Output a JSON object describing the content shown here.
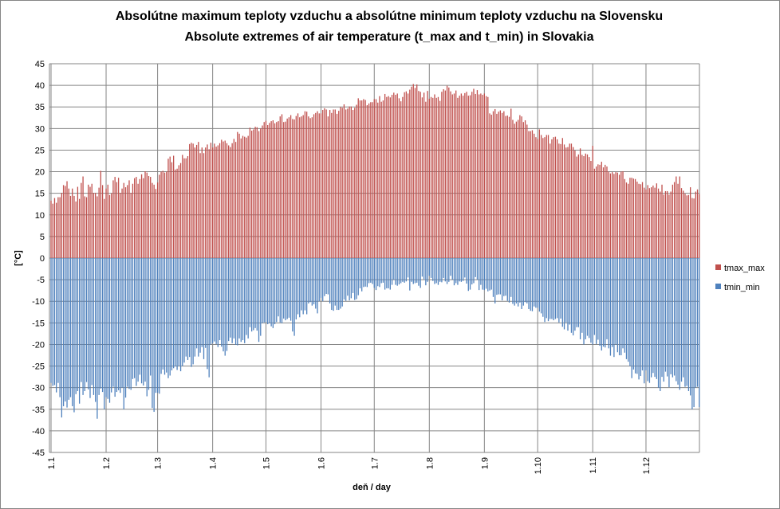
{
  "chart_data": {
    "type": "bar",
    "title": [
      "Absolútne maximum teploty vzduchu a absolútne minimum teploty vzduchu na Slovensku",
      "Absolute extremes of air temperature (t_max and t_min) in Slovakia"
    ],
    "xlabel": "deň / day",
    "ylabel": "[°C]",
    "ylim": [
      -45,
      45
    ],
    "ystep": 5,
    "grid": true,
    "legend_position": "right",
    "x_ticks": [
      {
        "label": "1.1",
        "day": 0
      },
      {
        "label": "1.2",
        "day": 31
      },
      {
        "label": "1.3",
        "day": 60
      },
      {
        "label": "1.4",
        "day": 91
      },
      {
        "label": "1.5",
        "day": 121
      },
      {
        "label": "1.6",
        "day": 152
      },
      {
        "label": "1.7",
        "day": 182
      },
      {
        "label": "1.8",
        "day": 213
      },
      {
        "label": "1.9",
        "day": 244
      },
      {
        "label": "1.10",
        "day": 274
      },
      {
        "label": "1.11",
        "day": 305
      },
      {
        "label": "1.12",
        "day": 335
      }
    ],
    "days": 366,
    "series": [
      {
        "name": "tmax_max",
        "color": "#C0504D",
        "values": [
          13.3,
          12.6,
          13.9,
          12.8,
          14.1,
          14.1,
          15.1,
          16.9,
          16.7,
          17.8,
          16.1,
          14.4,
          16.1,
          14.4,
          13.1,
          16.5,
          13.7,
          17.4,
          18.9,
          14.3,
          14.1,
          17.0,
          16.5,
          17.2,
          15.1,
          15.1,
          14.3,
          16.3,
          20.2,
          16.9,
          13.7,
          16.1,
          17.0,
          14.6,
          15.0,
          18.0,
          18.8,
          17.6,
          18.6,
          15.1,
          16.1,
          17.4,
          16.4,
          16.9,
          18.0,
          15.1,
          17.2,
          18.5,
          18.8,
          17.2,
          18.3,
          19.4,
          18.5,
          20.1,
          19.8,
          19.0,
          18.8,
          17.4,
          17.0,
          16.0,
          17.5,
          19.3,
          20.0,
          20.2,
          19.8,
          20.0,
          23.0,
          23.5,
          22.2,
          23.7,
          20.5,
          20.7,
          21.5,
          22.0,
          23.9,
          23.1,
          23.1,
          23.6,
          26.4,
          26.7,
          26.5,
          25.6,
          26.2,
          26.9,
          24.3,
          25.6,
          24.3,
          25.6,
          26.3,
          25.2,
          26.7,
          25.6,
          26.5,
          25.8,
          26.1,
          26.6,
          27.4,
          27.0,
          27.2,
          26.6,
          26.1,
          25.7,
          26.6,
          27.6,
          26.9,
          29.2,
          28.8,
          27.7,
          28.3,
          28.1,
          27.9,
          28.3,
          30.2,
          29.5,
          29.8,
          30.4,
          30.3,
          29.4,
          30.0,
          30.7,
          31.5,
          31.8,
          30.8,
          31.3,
          31.7,
          31.9,
          31.2,
          31.5,
          31.7,
          32.8,
          33.3,
          31.5,
          31.6,
          32.3,
          32.6,
          33.1,
          32.2,
          32.1,
          32.9,
          33.5,
          32.6,
          32.8,
          33.1,
          34.0,
          33.9,
          32.8,
          32.4,
          32.6,
          33.3,
          33.6,
          34.0,
          33.5,
          33.5,
          34.3,
          34.7,
          34.4,
          32.8,
          34.3,
          33.6,
          34.4,
          34.4,
          33.4,
          34.1,
          35.0,
          34.8,
          35.6,
          34.4,
          34.6,
          35.1,
          35.1,
          34.3,
          34.8,
          35.5,
          37.0,
          36.5,
          36.5,
          36.8,
          36.6,
          35.4,
          35.8,
          36.1,
          36.1,
          36.8,
          36.8,
          36.0,
          37.5,
          36.2,
          36.5,
          38.0,
          37.3,
          37.5,
          37.2,
          37.8,
          38.3,
          37.8,
          38.1,
          37.0,
          36.3,
          37.3,
          38.4,
          38.6,
          38.1,
          39.0,
          39.7,
          40.3,
          39.4,
          40.2,
          38.7,
          38.5,
          37.2,
          38.3,
          36.2,
          38.7,
          36.9,
          37.3,
          37.1,
          37.9,
          37.1,
          37.3,
          36.4,
          38.5,
          39.1,
          38.8,
          39.9,
          39.5,
          38.6,
          37.9,
          38.1,
          38.8,
          37.1,
          37.6,
          38.1,
          37.6,
          38.2,
          38.5,
          37.6,
          37.7,
          38.5,
          39.2,
          38.0,
          38.9,
          37.9,
          38.1,
          37.8,
          38.1,
          37.5,
          37.3,
          33.5,
          33.2,
          34.0,
          34.5,
          33.4,
          33.9,
          34.2,
          33.6,
          34.0,
          32.9,
          33.0,
          32.7,
          34.6,
          32.0,
          31.1,
          31.6,
          32.0,
          33.1,
          32.8,
          31.5,
          31.9,
          30.9,
          29.4,
          29.4,
          29.6,
          28.8,
          28.0,
          27.6,
          29.8,
          28.5,
          27.8,
          28.0,
          28.5,
          28.5,
          26.5,
          27.5,
          28.0,
          28.1,
          27.5,
          26.5,
          26.4,
          27.8,
          26.3,
          25.6,
          25.7,
          26.5,
          26.5,
          25.7,
          24.9,
          23.5,
          24.0,
          25.4,
          23.9,
          23.6,
          24.2,
          24.0,
          23.4,
          22.5,
          26.0,
          20.7,
          21.2,
          21.7,
          21.6,
          22.3,
          21.0,
          21.6,
          21.2,
          20.0,
          19.6,
          19.9,
          19.5,
          19.9,
          19.8,
          19.3,
          20.0,
          20.1,
          18.3,
          17.5,
          17.2,
          18.6,
          18.6,
          18.4,
          18.3,
          17.7,
          17.2,
          17.1,
          17.6,
          16.3,
          15.9,
          16.9,
          16.2,
          16.4,
          16.8,
          16.3,
          17.3,
          16.1,
          15.4,
          17.0,
          14.7,
          15.5,
          15.5,
          14.7,
          15.4,
          17.0,
          17.6,
          18.9,
          17.2,
          18.9,
          16.2,
          15.6,
          14.9,
          14.5,
          14.6,
          16.4,
          13.9,
          13.8,
          15.4,
          15.9,
          14.8
        ]
      },
      {
        "name": "tmin_min",
        "color": "#4F81BD",
        "values": [
          -28.9,
          -29.6,
          -29.4,
          -31.1,
          -28.9,
          -32.2,
          -36.9,
          -34.3,
          -33.2,
          -34.6,
          -32.8,
          -32.2,
          -34.3,
          -35.7,
          -31.5,
          -30.8,
          -33.7,
          -28.7,
          -31.7,
          -30.8,
          -28.7,
          -30.4,
          -32.4,
          -29.4,
          -31.7,
          -33.3,
          -37.2,
          -31.7,
          -30.2,
          -31.0,
          -35.0,
          -32.2,
          -32.6,
          -33.5,
          -31.1,
          -29.8,
          -32.1,
          -31.0,
          -30.6,
          -31.2,
          -30.0,
          -35.0,
          -32.3,
          -29.8,
          -30.3,
          -30.5,
          -28.0,
          -27.8,
          -29.6,
          -28.6,
          -27.0,
          -29.0,
          -29.5,
          -28.6,
          -32.0,
          -30.5,
          -27.2,
          -34.7,
          -35.6,
          -31.2,
          -31.2,
          -31.4,
          -26.8,
          -25.8,
          -27.0,
          -26.5,
          -27.8,
          -27.2,
          -26.0,
          -25.5,
          -25.1,
          -25.9,
          -25.0,
          -26.2,
          -25.0,
          -24.2,
          -22.8,
          -23.6,
          -22.9,
          -25.2,
          -24.6,
          -22.8,
          -20.9,
          -22.8,
          -21.9,
          -20.6,
          -23.4,
          -20.8,
          -25.7,
          -27.6,
          -20.0,
          -19.7,
          -19.3,
          -19.9,
          -20.6,
          -19.0,
          -20.5,
          -21.6,
          -22.6,
          -21.5,
          -19.2,
          -18.4,
          -19.7,
          -18.6,
          -20.1,
          -20.2,
          -18.6,
          -19.4,
          -19.0,
          -19.7,
          -17.8,
          -18.6,
          -16.0,
          -17.0,
          -16.7,
          -16.2,
          -16.8,
          -19.4,
          -18.0,
          -15.1,
          -14.9,
          -14.9,
          -15.3,
          -15.1,
          -15.8,
          -16.2,
          -15.3,
          -14.8,
          -13.5,
          -14.9,
          -15.1,
          -14.0,
          -14.4,
          -14.1,
          -13.8,
          -14.5,
          -17.0,
          -18.0,
          -14.2,
          -13.0,
          -13.7,
          -12.1,
          -13.0,
          -12.1,
          -13.0,
          -10.5,
          -10.2,
          -11.0,
          -10.7,
          -11.7,
          -12.8,
          -10.0,
          -9.2,
          -10.0,
          -8.8,
          -8.3,
          -8.4,
          -10.5,
          -12.0,
          -12.2,
          -11.0,
          -12.0,
          -12.0,
          -11.7,
          -11.2,
          -9.6,
          -9.9,
          -8.7,
          -9.8,
          -9.3,
          -8.1,
          -9.7,
          -9.5,
          -8.6,
          -7.0,
          -7.7,
          -6.7,
          -6.6,
          -6.7,
          -5.8,
          -5.7,
          -6.0,
          -6.9,
          -7.4,
          -6.5,
          -6.7,
          -5.8,
          -5.7,
          -7.3,
          -7.0,
          -7.0,
          -7.3,
          -6.2,
          -5.0,
          -6.2,
          -6.4,
          -6.1,
          -5.8,
          -5.5,
          -5.7,
          -5.4,
          -4.5,
          -7.5,
          -5.5,
          -6.0,
          -5.8,
          -5.7,
          -6.4,
          -6.9,
          -4.3,
          -4.9,
          -6.3,
          -5.5,
          -4.1,
          -4.6,
          -5.3,
          -6.0,
          -5.8,
          -6.2,
          -5.5,
          -5.6,
          -4.6,
          -5.4,
          -6.0,
          -5.5,
          -4.1,
          -5.0,
          -6.3,
          -5.8,
          -6.2,
          -5.4,
          -5.5,
          -5.3,
          -4.5,
          -5.9,
          -7.6,
          -7.3,
          -6.1,
          -5.8,
          -4.4,
          -5.0,
          -7.4,
          -6.2,
          -7.3,
          -7.4,
          -7.1,
          -7.7,
          -7.5,
          -7.3,
          -9.0,
          -10.5,
          -8.5,
          -8.4,
          -8.4,
          -9.8,
          -8.8,
          -8.7,
          -9.9,
          -10.3,
          -9.0,
          -10.6,
          -11.0,
          -10.5,
          -11.2,
          -10.3,
          -11.8,
          -11.0,
          -10.2,
          -10.5,
          -11.8,
          -12.2,
          -12.3,
          -11.2,
          -11.5,
          -11.5,
          -12.4,
          -12.8,
          -13.6,
          -14.8,
          -13.9,
          -14.6,
          -14.1,
          -14.1,
          -14.4,
          -14.1,
          -13.9,
          -14.9,
          -14.0,
          -15.9,
          -16.5,
          -14.9,
          -16.8,
          -15.4,
          -17.3,
          -17.9,
          -16.8,
          -16.0,
          -16.0,
          -18.8,
          -17.3,
          -20.0,
          -18.8,
          -18.0,
          -18.5,
          -19.6,
          -20.0,
          -17.8,
          -19.9,
          -18.9,
          -20.3,
          -21.4,
          -20.5,
          -20.7,
          -18.8,
          -20.9,
          -22.6,
          -20.6,
          -22.9,
          -20.0,
          -21.8,
          -22.5,
          -22.5,
          -20.9,
          -21.9,
          -23.4,
          -24.0,
          -25.0,
          -27.8,
          -25.8,
          -26.7,
          -26.8,
          -28.1,
          -27.3,
          -26.0,
          -29.0,
          -26.0,
          -28.5,
          -28.9,
          -27.6,
          -26.6,
          -27.5,
          -28.0,
          -30.0,
          -30.8,
          -27.5,
          -28.6,
          -26.3,
          -27.4,
          -29.9,
          -26.9,
          -27.6,
          -27.2,
          -28.5,
          -29.3,
          -30.5,
          -28.6,
          -27.6,
          -29.8,
          -29.6,
          -30.8,
          -31.8,
          -35.0,
          -34.5,
          -30.0,
          -29.8,
          -34.5
        ]
      }
    ]
  }
}
